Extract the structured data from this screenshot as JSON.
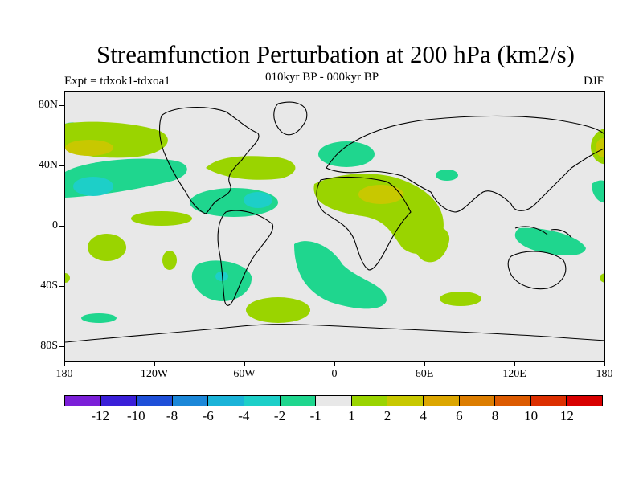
{
  "title": "Streamfunction Perturbation at 200 hPa (km2/s)",
  "subtitle": "010kyr BP - 000kyr BP",
  "experiment": "Expt = tdxok1-tdxoa1",
  "season": "DJF",
  "map": {
    "lat_labels": [
      "80N",
      "40N",
      "0",
      "40S",
      "80S"
    ],
    "lon_labels": [
      "180",
      "120W",
      "60W",
      "0",
      "60E",
      "120E",
      "180"
    ],
    "background_color": "#e8e8e8"
  },
  "colorbar": {
    "labels": [
      "-12",
      "-10",
      "-8",
      "-6",
      "-4",
      "-2",
      "-1",
      "1",
      "2",
      "4",
      "6",
      "8",
      "10",
      "12"
    ],
    "colors": [
      "#7b1fd8",
      "#3a1fd8",
      "#1e4fd8",
      "#1b87d8",
      "#1bb3d8",
      "#1dcfc8",
      "#1fd68e",
      "#e8e8e8",
      "#9ad400",
      "#c8c800",
      "#dca600",
      "#dc7d00",
      "#dc5a00",
      "#dc2f00",
      "#d80000"
    ]
  }
}
